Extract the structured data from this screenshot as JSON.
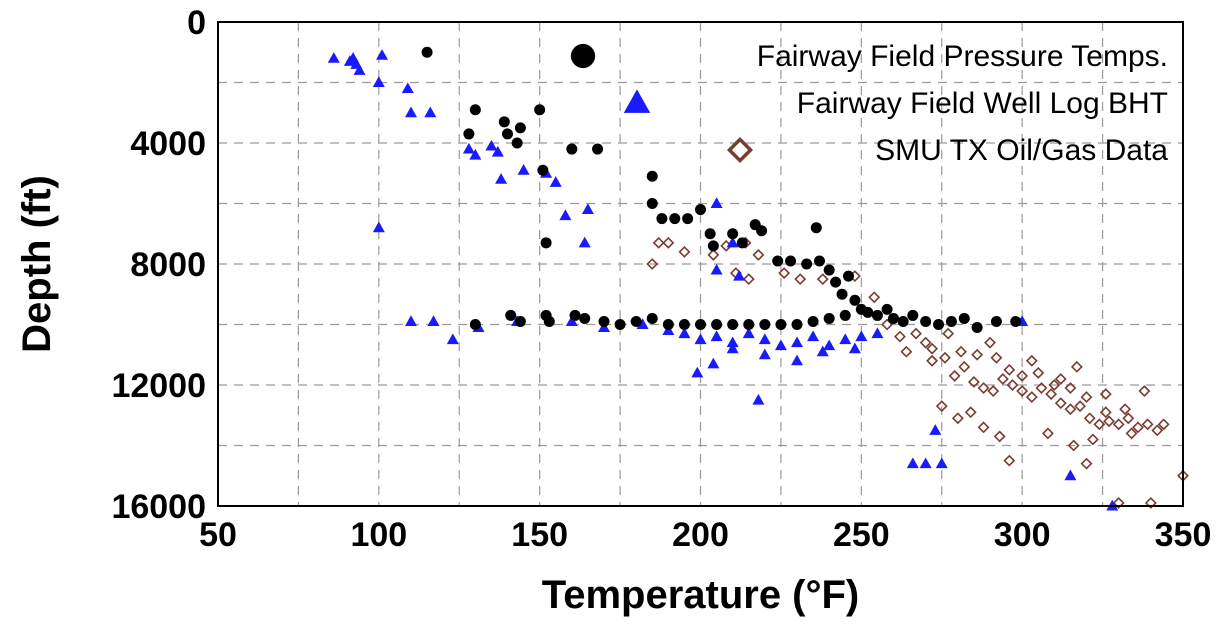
{
  "chart_data": {
    "type": "scatter",
    "xlabel": "Temperature (°F)",
    "ylabel": "Depth (ft)",
    "xlim": [
      50,
      350
    ],
    "ylim": [
      0,
      16000
    ],
    "y_inverted": true,
    "x_ticks": [
      50,
      100,
      150,
      200,
      250,
      300,
      350
    ],
    "y_ticks": [
      0,
      4000,
      8000,
      12000,
      16000
    ],
    "grid": true,
    "legend_position": "top-right",
    "series": [
      {
        "name": "Fairway Field Pressure Temps.",
        "marker": "circle",
        "color": "#000000",
        "points": [
          [
            115,
            1000
          ],
          [
            128,
            3700
          ],
          [
            130,
            2900
          ],
          [
            139,
            3300
          ],
          [
            140,
            3700
          ],
          [
            143,
            4000
          ],
          [
            144,
            3500
          ],
          [
            150,
            2900
          ],
          [
            151,
            4900
          ],
          [
            152,
            7300
          ],
          [
            160,
            4200
          ],
          [
            168,
            4200
          ],
          [
            185,
            5100
          ],
          [
            185,
            6000
          ],
          [
            188,
            6500
          ],
          [
            192,
            6500
          ],
          [
            196,
            6500
          ],
          [
            200,
            6200
          ],
          [
            203,
            7000
          ],
          [
            204,
            7400
          ],
          [
            210,
            7000
          ],
          [
            213,
            7300
          ],
          [
            217,
            6700
          ],
          [
            219,
            6900
          ],
          [
            224,
            7900
          ],
          [
            228,
            7900
          ],
          [
            233,
            8000
          ],
          [
            236,
            6800
          ],
          [
            237,
            7900
          ],
          [
            240,
            8200
          ],
          [
            242,
            8600
          ],
          [
            244,
            9000
          ],
          [
            246,
            8400
          ],
          [
            248,
            9200
          ],
          [
            250,
            9500
          ],
          [
            252,
            9600
          ],
          [
            130,
            10000
          ],
          [
            141,
            9700
          ],
          [
            144,
            9900
          ],
          [
            152,
            9700
          ],
          [
            153,
            9900
          ],
          [
            161,
            9700
          ],
          [
            164,
            9800
          ],
          [
            170,
            9900
          ],
          [
            175,
            10000
          ],
          [
            180,
            9900
          ],
          [
            185,
            9800
          ],
          [
            190,
            10000
          ],
          [
            195,
            10000
          ],
          [
            200,
            10000
          ],
          [
            205,
            10000
          ],
          [
            210,
            10000
          ],
          [
            215,
            10000
          ],
          [
            220,
            10000
          ],
          [
            225,
            10000
          ],
          [
            230,
            10000
          ],
          [
            235,
            9900
          ],
          [
            240,
            9800
          ],
          [
            245,
            9700
          ],
          [
            255,
            9700
          ],
          [
            258,
            9500
          ],
          [
            260,
            9800
          ],
          [
            263,
            9900
          ],
          [
            266,
            9700
          ],
          [
            270,
            9900
          ],
          [
            274,
            10000
          ],
          [
            278,
            9900
          ],
          [
            282,
            9800
          ],
          [
            286,
            10100
          ],
          [
            292,
            9900
          ],
          [
            298,
            9900
          ]
        ]
      },
      {
        "name": "Fairway Field Well Log BHT",
        "marker": "triangle",
        "color": "#1a1aff",
        "points": [
          [
            86,
            1200
          ],
          [
            91,
            1300
          ],
          [
            92,
            1200
          ],
          [
            93,
            1400
          ],
          [
            94,
            1600
          ],
          [
            100,
            2000
          ],
          [
            101,
            1100
          ],
          [
            109,
            2200
          ],
          [
            110,
            3000
          ],
          [
            116,
            3000
          ],
          [
            100,
            6800
          ],
          [
            128,
            4200
          ],
          [
            130,
            4400
          ],
          [
            135,
            4100
          ],
          [
            137,
            4300
          ],
          [
            138,
            5200
          ],
          [
            145,
            4900
          ],
          [
            152,
            5000
          ],
          [
            155,
            5300
          ],
          [
            158,
            6400
          ],
          [
            165,
            6200
          ],
          [
            164,
            7300
          ],
          [
            110,
            9900
          ],
          [
            117,
            9900
          ],
          [
            123,
            10500
          ],
          [
            131,
            10100
          ],
          [
            143,
            9900
          ],
          [
            160,
            9900
          ],
          [
            170,
            10100
          ],
          [
            182,
            10000
          ],
          [
            190,
            10200
          ],
          [
            195,
            10300
          ],
          [
            200,
            10500
          ],
          [
            205,
            10400
          ],
          [
            210,
            10600
          ],
          [
            215,
            10300
          ],
          [
            220,
            10500
          ],
          [
            225,
            10700
          ],
          [
            230,
            10600
          ],
          [
            235,
            10400
          ],
          [
            240,
            10700
          ],
          [
            245,
            10500
          ],
          [
            250,
            10400
          ],
          [
            255,
            10300
          ],
          [
            199,
            11600
          ],
          [
            204,
            11300
          ],
          [
            210,
            10800
          ],
          [
            220,
            11000
          ],
          [
            230,
            11200
          ],
          [
            238,
            10900
          ],
          [
            248,
            10800
          ],
          [
            218,
            12500
          ],
          [
            205,
            8200
          ],
          [
            212,
            8400
          ],
          [
            205,
            6000
          ],
          [
            210,
            7300
          ],
          [
            273,
            13500
          ],
          [
            266,
            14600
          ],
          [
            270,
            14600
          ],
          [
            275,
            14600
          ],
          [
            315,
            15000
          ],
          [
            328,
            16000
          ],
          [
            300,
            9900
          ]
        ]
      },
      {
        "name": "SMU TX Oil/Gas Data",
        "marker": "diamond-open",
        "color": "#7a3b30",
        "points": [
          [
            187,
            7300
          ],
          [
            190,
            7300
          ],
          [
            195,
            7600
          ],
          [
            204,
            7700
          ],
          [
            208,
            7400
          ],
          [
            214,
            7300
          ],
          [
            218,
            7700
          ],
          [
            185,
            8000
          ],
          [
            211,
            8300
          ],
          [
            215,
            8500
          ],
          [
            226,
            8300
          ],
          [
            231,
            8500
          ],
          [
            238,
            8500
          ],
          [
            248,
            8400
          ],
          [
            254,
            9100
          ],
          [
            258,
            10000
          ],
          [
            262,
            10400
          ],
          [
            264,
            10900
          ],
          [
            270,
            10600
          ],
          [
            272,
            11200
          ],
          [
            276,
            11100
          ],
          [
            279,
            11700
          ],
          [
            282,
            11400
          ],
          [
            285,
            11900
          ],
          [
            288,
            12100
          ],
          [
            291,
            12200
          ],
          [
            294,
            11800
          ],
          [
            297,
            12000
          ],
          [
            300,
            12200
          ],
          [
            303,
            12400
          ],
          [
            306,
            12100
          ],
          [
            309,
            12300
          ],
          [
            312,
            12600
          ],
          [
            315,
            12800
          ],
          [
            318,
            12700
          ],
          [
            321,
            13100
          ],
          [
            324,
            13300
          ],
          [
            327,
            13200
          ],
          [
            330,
            13300
          ],
          [
            333,
            13100
          ],
          [
            336,
            13400
          ],
          [
            339,
            13300
          ],
          [
            292,
            11100
          ],
          [
            296,
            11500
          ],
          [
            300,
            11700
          ],
          [
            305,
            11600
          ],
          [
            310,
            12000
          ],
          [
            315,
            12100
          ],
          [
            275,
            12700
          ],
          [
            280,
            13100
          ],
          [
            284,
            12900
          ],
          [
            288,
            13400
          ],
          [
            293,
            13700
          ],
          [
            296,
            14500
          ],
          [
            308,
            13600
          ],
          [
            316,
            14000
          ],
          [
            320,
            14600
          ],
          [
            330,
            15900
          ],
          [
            340,
            15900
          ],
          [
            350,
            15000
          ],
          [
            322,
            13800
          ],
          [
            326,
            12300
          ],
          [
            332,
            12800
          ],
          [
            338,
            12200
          ],
          [
            344,
            13300
          ],
          [
            267,
            10300
          ],
          [
            272,
            10800
          ],
          [
            277,
            10300
          ],
          [
            281,
            10900
          ],
          [
            286,
            11000
          ],
          [
            290,
            10600
          ],
          [
            303,
            11200
          ],
          [
            312,
            11800
          ],
          [
            317,
            11400
          ],
          [
            320,
            12400
          ],
          [
            326,
            12900
          ],
          [
            334,
            13600
          ],
          [
            342,
            13500
          ]
        ]
      }
    ]
  }
}
